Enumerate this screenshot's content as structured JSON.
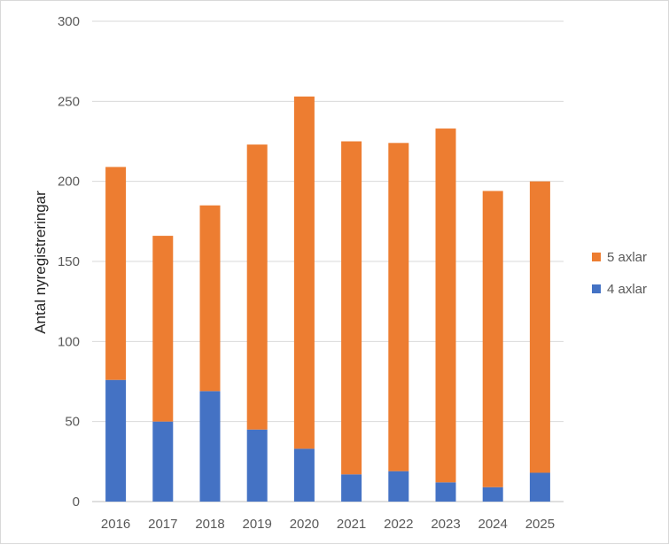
{
  "chart_data": {
    "type": "bar",
    "stacked": true,
    "title": "",
    "xlabel": "",
    "ylabel": "Antal nyregistreringar",
    "ylim": [
      0,
      300
    ],
    "yticks": [
      0,
      50,
      100,
      150,
      200,
      250,
      300
    ],
    "grid": true,
    "legend_position": "right",
    "categories": [
      "2016",
      "2017",
      "2018",
      "2019",
      "2020",
      "2021",
      "2022",
      "2023",
      "2024",
      "2025"
    ],
    "series": [
      {
        "name": "4 axlar",
        "color": "#4472C4",
        "values": [
          76,
          50,
          69,
          45,
          33,
          17,
          19,
          12,
          9,
          18
        ]
      },
      {
        "name": "5 axlar",
        "color": "#ED7D31",
        "values": [
          133,
          116,
          116,
          178,
          220,
          208,
          205,
          221,
          185,
          182
        ]
      }
    ],
    "legend_order": [
      "5 axlar",
      "4 axlar"
    ]
  }
}
